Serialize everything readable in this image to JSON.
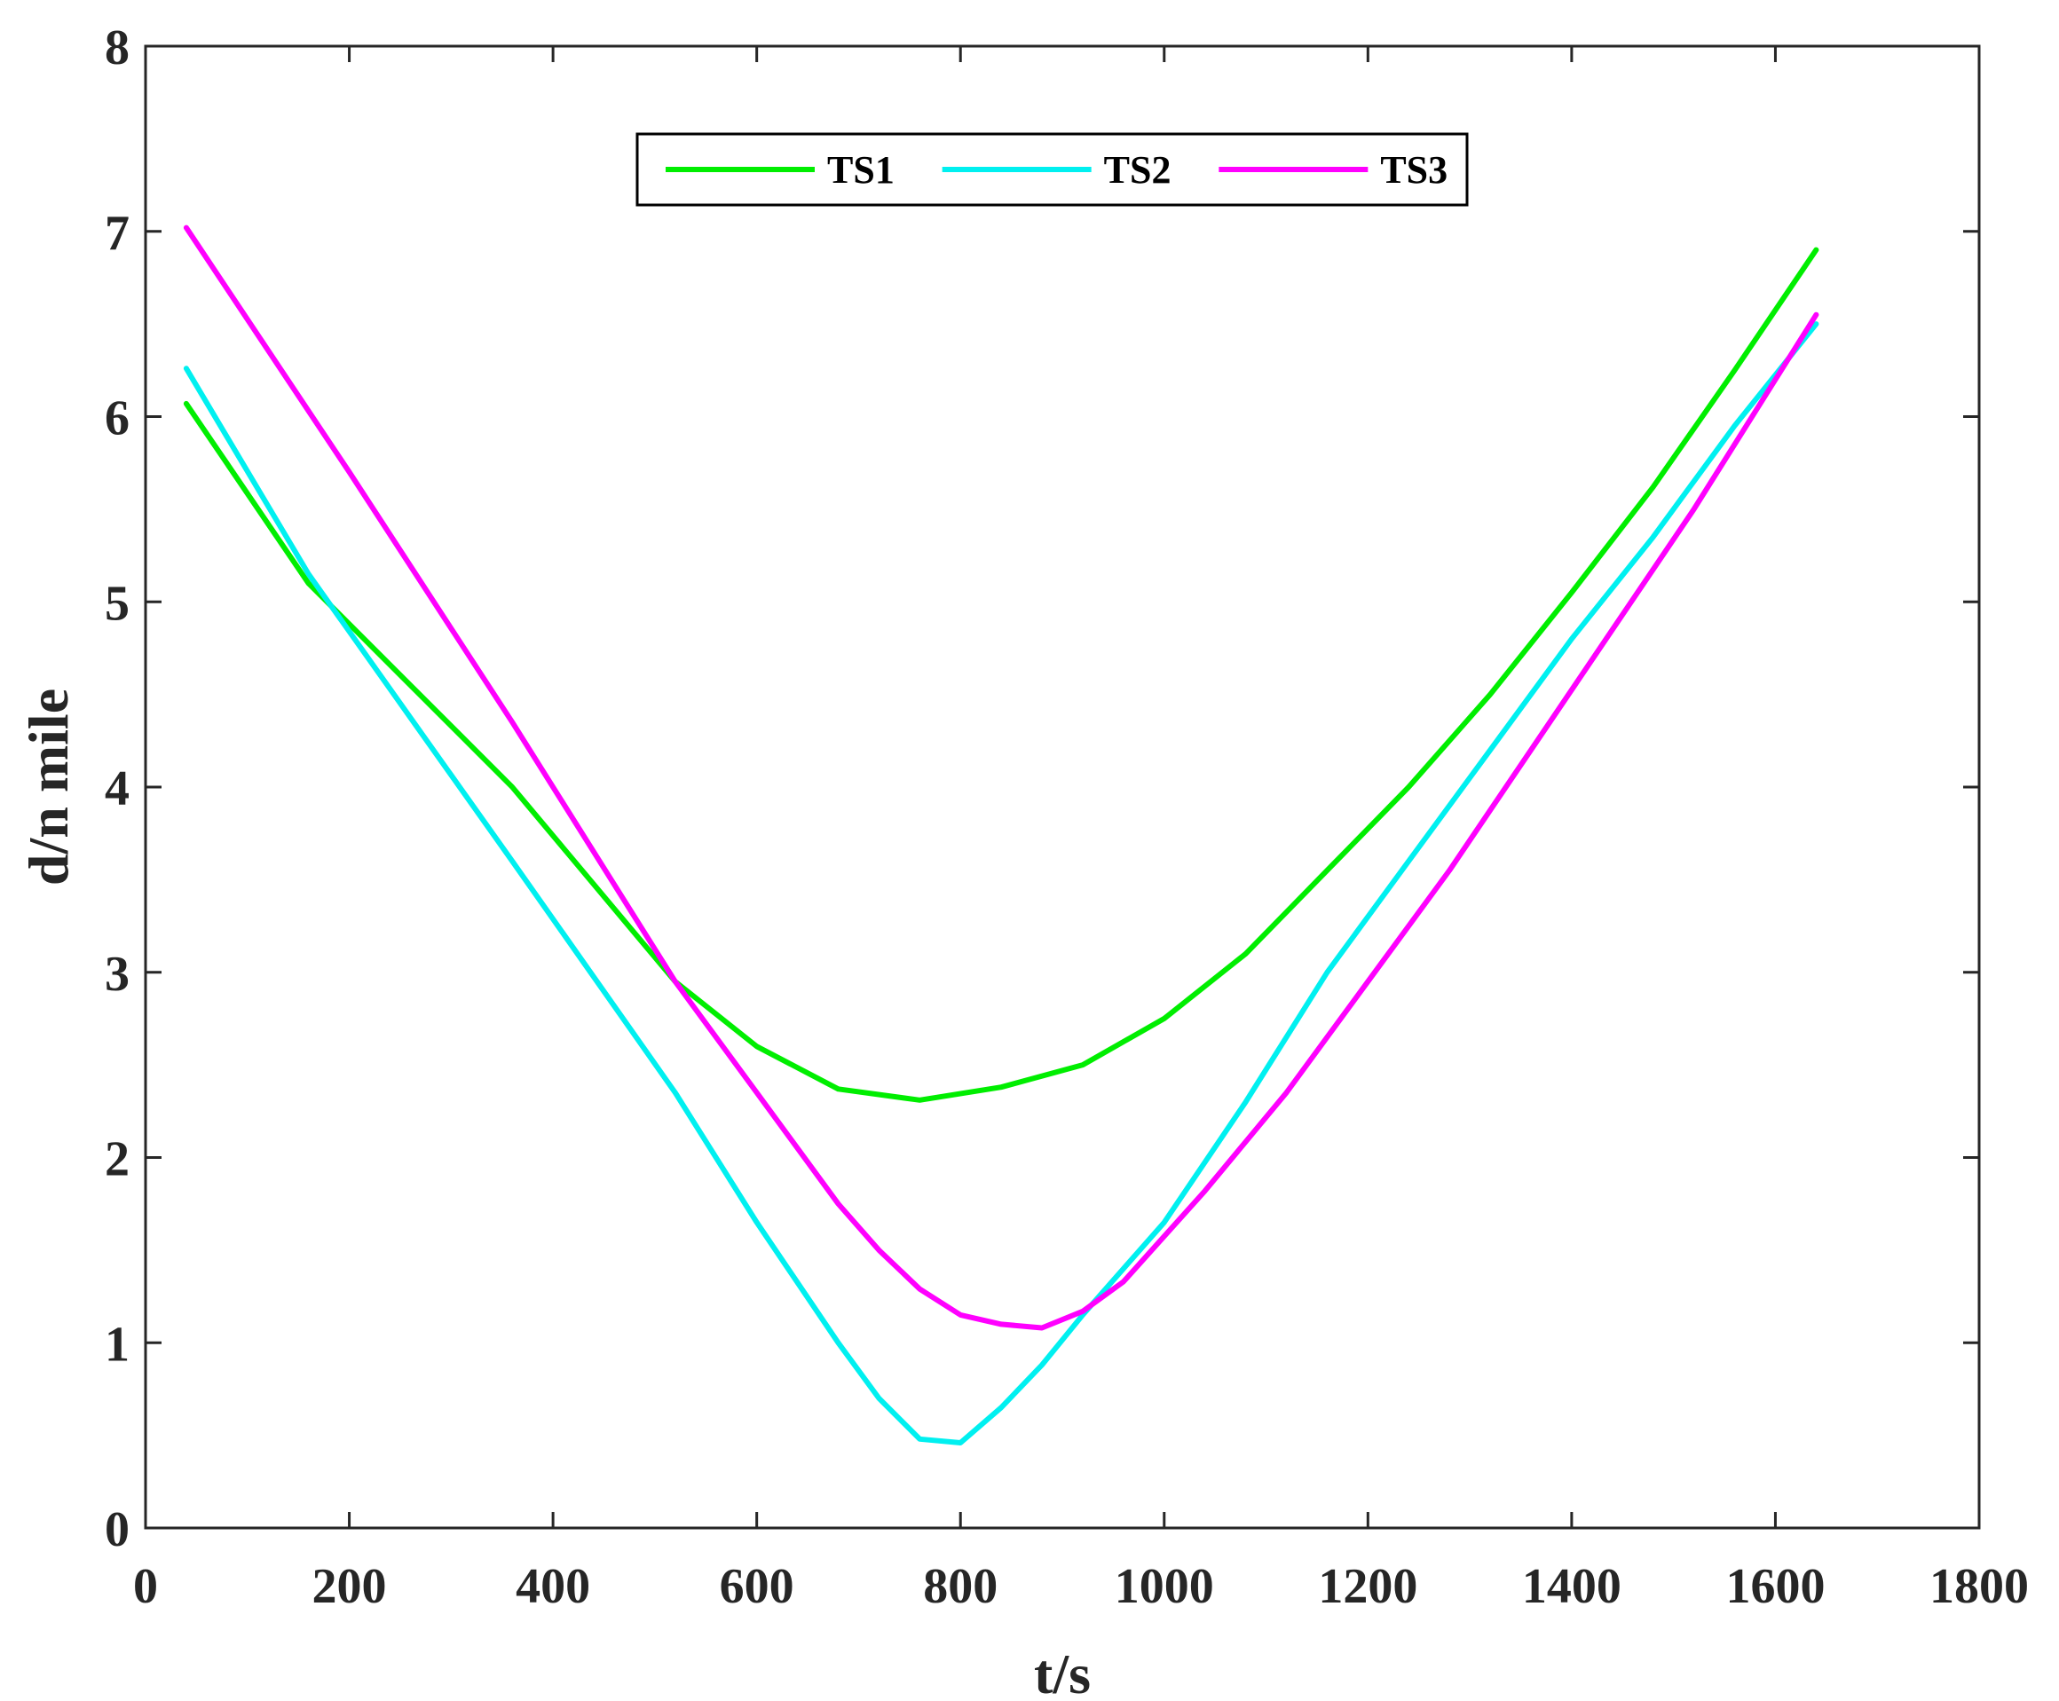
{
  "chart_data": {
    "type": "line",
    "title": "",
    "xlabel": "t/s",
    "ylabel": "d/n mile",
    "xlim": [
      0,
      1800
    ],
    "ylim": [
      0,
      8
    ],
    "xticks": [
      "0",
      "200",
      "400",
      "600",
      "800",
      "1000",
      "1200",
      "1400",
      "1600",
      "1800"
    ],
    "yticks": [
      "0",
      "1",
      "2",
      "3",
      "4",
      "5",
      "6",
      "7",
      "8"
    ],
    "grid": false,
    "legend_position": "top-center",
    "series": [
      {
        "name": "TS1",
        "color": "#00ee00",
        "x": [
          40,
          160,
          360,
          520,
          600,
          680,
          760,
          840,
          920,
          1000,
          1080,
          1160,
          1240,
          1320,
          1400,
          1480,
          1560,
          1640
        ],
        "y": [
          6.07,
          5.1,
          4.0,
          2.95,
          2.6,
          2.37,
          2.31,
          2.38,
          2.5,
          2.75,
          3.1,
          3.55,
          4.0,
          4.5,
          5.05,
          5.62,
          6.25,
          6.9
        ]
      },
      {
        "name": "TS2",
        "color": "#00f0f0",
        "x": [
          40,
          160,
          360,
          520,
          600,
          680,
          720,
          760,
          800,
          840,
          880,
          920,
          1000,
          1080,
          1160,
          1240,
          1320,
          1400,
          1480,
          1560,
          1640
        ],
        "y": [
          6.26,
          5.15,
          3.6,
          2.35,
          1.65,
          1.0,
          0.7,
          0.48,
          0.46,
          0.65,
          0.88,
          1.15,
          1.65,
          2.3,
          3.0,
          3.6,
          4.2,
          4.8,
          5.35,
          5.95,
          6.5
        ]
      },
      {
        "name": "TS3",
        "color": "#ff00ff",
        "x": [
          40,
          200,
          360,
          520,
          600,
          680,
          720,
          760,
          800,
          840,
          880,
          920,
          960,
          1040,
          1120,
          1200,
          1280,
          1360,
          1440,
          1520,
          1600,
          1640
        ],
        "y": [
          7.02,
          5.7,
          4.35,
          2.95,
          2.35,
          1.75,
          1.5,
          1.29,
          1.15,
          1.1,
          1.08,
          1.17,
          1.33,
          1.82,
          2.35,
          2.95,
          3.55,
          4.2,
          4.85,
          5.5,
          6.2,
          6.55
        ]
      }
    ]
  }
}
